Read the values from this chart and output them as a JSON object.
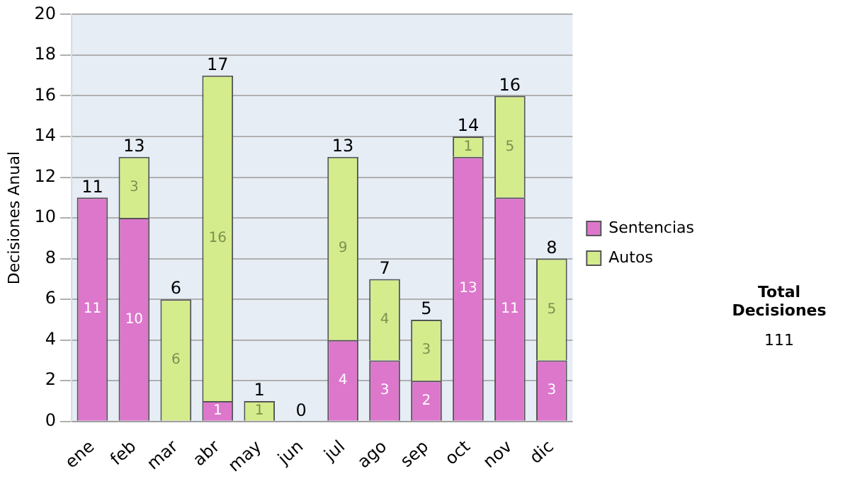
{
  "chart_data": {
    "type": "bar",
    "stacked": true,
    "ylabel": "Decisiones Anual",
    "categories": [
      "ene",
      "feb",
      "mar",
      "abr",
      "may",
      "jun",
      "jul",
      "ago",
      "sep",
      "oct",
      "nov",
      "dic"
    ],
    "series": [
      {
        "name": "Sentencias",
        "color": "#dd77cc",
        "values": [
          11,
          10,
          0,
          1,
          0,
          0,
          4,
          3,
          2,
          13,
          11,
          3
        ],
        "value_labels": [
          "11",
          "10",
          null,
          "1",
          null,
          null,
          "4",
          "3",
          "2",
          "13",
          "11",
          "3"
        ]
      },
      {
        "name": "Autos",
        "color": "#d4ec8c",
        "values": [
          0,
          3,
          6,
          16,
          1,
          0,
          9,
          4,
          3,
          1,
          5,
          5
        ],
        "value_labels": [
          null,
          "3",
          "6",
          "16",
          "1",
          null,
          "9",
          "4",
          "3",
          "1",
          "5",
          "5"
        ]
      }
    ],
    "totals": [
      "11",
      "13",
      "6",
      "17",
      "1",
      "0",
      "13",
      "7",
      "5",
      "14",
      "16",
      "8"
    ],
    "ylim": [
      0,
      20
    ],
    "yticks": [
      0,
      2,
      4,
      6,
      8,
      10,
      12,
      14,
      16,
      18,
      20
    ],
    "grid": "y",
    "legend": "right",
    "annotations": [
      "Total Decisiones",
      "111"
    ]
  }
}
